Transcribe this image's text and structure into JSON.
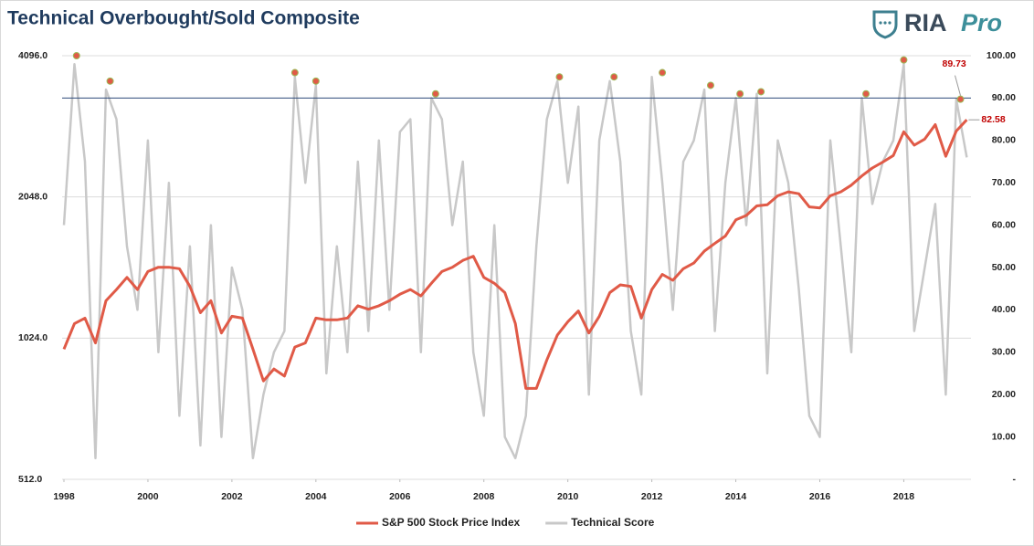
{
  "branding": {
    "name": "RIA",
    "suffix": "Pro"
  },
  "chart_data": {
    "type": "line",
    "title": "Technical Overbought/Sold Composite",
    "x": [
      1998,
      1998.25,
      1998.5,
      1998.75,
      1999,
      1999.25,
      1999.5,
      1999.75,
      2000,
      2000.25,
      2000.5,
      2000.75,
      2001,
      2001.25,
      2001.5,
      2001.75,
      2002,
      2002.25,
      2002.5,
      2002.75,
      2003,
      2003.25,
      2003.5,
      2003.75,
      2004,
      2004.25,
      2004.5,
      2004.75,
      2005,
      2005.25,
      2005.5,
      2005.75,
      2006,
      2006.25,
      2006.5,
      2006.75,
      2007,
      2007.25,
      2007.5,
      2007.75,
      2008,
      2008.25,
      2008.5,
      2008.75,
      2009,
      2009.25,
      2009.5,
      2009.75,
      2010,
      2010.25,
      2010.5,
      2010.75,
      2011,
      2011.25,
      2011.5,
      2011.75,
      2012,
      2012.25,
      2012.5,
      2012.75,
      2013,
      2013.25,
      2013.5,
      2013.75,
      2014,
      2014.25,
      2014.5,
      2014.75,
      2015,
      2015.25,
      2015.5,
      2015.75,
      2016,
      2016.25,
      2016.5,
      2016.75,
      2017,
      2017.25,
      2017.5,
      2017.75,
      2018,
      2018.25,
      2018.5,
      2018.75,
      2019,
      2019.25,
      2019.5
    ],
    "series": [
      {
        "name": "S&P 500 Stock Price Index",
        "color": "#e05a47",
        "axis": "y",
        "values": [
          970,
          1100,
          1130,
          1000,
          1230,
          1300,
          1380,
          1300,
          1420,
          1450,
          1450,
          1440,
          1320,
          1160,
          1230,
          1050,
          1140,
          1130,
          970,
          830,
          880,
          850,
          980,
          1000,
          1130,
          1120,
          1120,
          1130,
          1200,
          1180,
          1200,
          1230,
          1270,
          1300,
          1260,
          1340,
          1420,
          1450,
          1500,
          1530,
          1380,
          1340,
          1280,
          1100,
          800,
          800,
          920,
          1040,
          1110,
          1170,
          1050,
          1140,
          1280,
          1330,
          1320,
          1130,
          1300,
          1400,
          1360,
          1440,
          1480,
          1570,
          1630,
          1690,
          1830,
          1870,
          1960,
          1970,
          2060,
          2100,
          2080,
          1950,
          1940,
          2060,
          2100,
          2170,
          2270,
          2360,
          2430,
          2510,
          2820,
          2640,
          2720,
          2920,
          2500,
          2830,
          2990
        ]
      },
      {
        "name": "Technical Score",
        "color": "#c8c8c8",
        "axis": "y2",
        "values": [
          60,
          98,
          75,
          5,
          92,
          85,
          55,
          40,
          80,
          30,
          70,
          15,
          55,
          8,
          60,
          10,
          50,
          40,
          5,
          20,
          30,
          35,
          95,
          70,
          93,
          25,
          55,
          30,
          75,
          35,
          80,
          40,
          82,
          85,
          30,
          90,
          85,
          60,
          75,
          30,
          15,
          60,
          10,
          5,
          15,
          55,
          85,
          94,
          70,
          88,
          20,
          80,
          94,
          75,
          35,
          20,
          95,
          70,
          40,
          75,
          80,
          92,
          35,
          70,
          90,
          60,
          91,
          25,
          80,
          70,
          45,
          15,
          10,
          80,
          55,
          30,
          90,
          65,
          75,
          80,
          98,
          35,
          50,
          65,
          20,
          89.73,
          76
        ]
      }
    ],
    "markers": {
      "color": "#e05a47",
      "axis": "y2",
      "x": [
        1998.3,
        1999.1,
        2003.5,
        2004.0,
        2006.85,
        2009.8,
        2011.1,
        2012.25,
        2013.4,
        2014.1,
        2014.6,
        2017.1,
        2018.0,
        2019.35
      ],
      "values": [
        100,
        94,
        96,
        94,
        91,
        95,
        95,
        96,
        93,
        91,
        91.5,
        91,
        99,
        89.73
      ]
    },
    "reference_line": {
      "value": 90,
      "axis": "y2",
      "color": "#2e4a7a"
    },
    "annotations": [
      "89.73",
      "82.58"
    ],
    "xlim": [
      1998,
      2019.6
    ],
    "xticks": [
      1998,
      2000,
      2002,
      2004,
      2006,
      2008,
      2010,
      2012,
      2014,
      2016,
      2018
    ],
    "ylim": [
      512,
      4096
    ],
    "log_scale": true,
    "yticks": [
      {
        "value": 512,
        "label": "512.0"
      },
      {
        "value": 1024,
        "label": "1024.0"
      },
      {
        "value": 2048,
        "label": "2048.0"
      },
      {
        "value": 4096,
        "label": "4096.0"
      }
    ],
    "y2lim": [
      0,
      100
    ],
    "y2ticks": [
      {
        "value": 0,
        "label": "-"
      },
      {
        "value": 10,
        "label": "10.00"
      },
      {
        "value": 20,
        "label": "20.00"
      },
      {
        "value": 30,
        "label": "30.00"
      },
      {
        "value": 40,
        "label": "40.00"
      },
      {
        "value": 50,
        "label": "50.00"
      },
      {
        "value": 60,
        "label": "60.00"
      },
      {
        "value": 70,
        "label": "70.00"
      },
      {
        "value": 80,
        "label": "80.00"
      },
      {
        "value": 90,
        "label": "90.00"
      },
      {
        "value": 100,
        "label": "100.00"
      }
    ],
    "grid": true,
    "legend": "bottom"
  }
}
